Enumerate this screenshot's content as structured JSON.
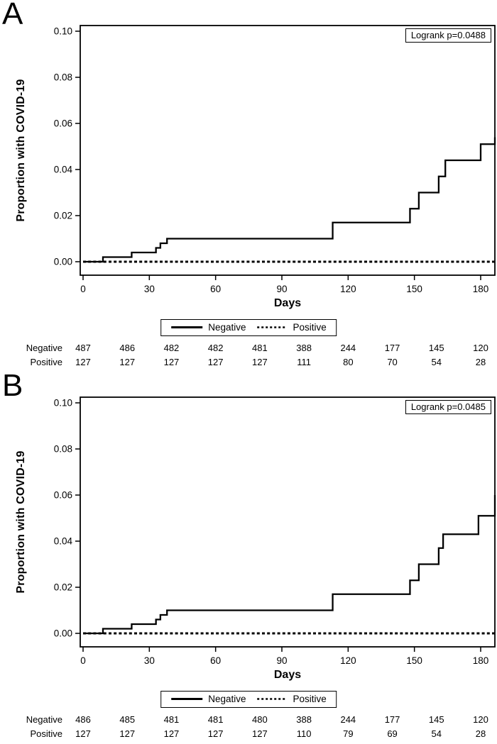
{
  "figure": {
    "background": "#ffffff",
    "ink": "#000000"
  },
  "chart_data": [
    {
      "type": "line",
      "subtype": "kaplan-meier-step",
      "panel_letter": "A",
      "xlabel": "Days",
      "ylabel": "Proportion with COVID-19",
      "xlim": [
        0,
        186.5
      ],
      "ylim": [
        0,
        0.1
      ],
      "x_ticks": [
        0,
        30,
        60,
        90,
        120,
        150,
        180
      ],
      "y_tick_labels": [
        "0.00",
        "0.02",
        "0.04",
        "0.06",
        "0.08",
        "0.10"
      ],
      "grid": false,
      "legend_position": "below-center",
      "annotation": "Logrank p=0.0488",
      "legend": [
        {
          "label": "Negative",
          "style": "solid"
        },
        {
          "label": "Positive",
          "style": "dotted"
        }
      ],
      "series": [
        {
          "name": "Negative",
          "style": "solid",
          "steps": [
            [
              0,
              0
            ],
            [
              9,
              0.002
            ],
            [
              22,
              0.004
            ],
            [
              33,
              0.006
            ],
            [
              35,
              0.008
            ],
            [
              38,
              0.01
            ],
            [
              113,
              0.017
            ],
            [
              148,
              0.023
            ],
            [
              152,
              0.03
            ],
            [
              161,
              0.037
            ],
            [
              164,
              0.044
            ],
            [
              180,
              0.051
            ],
            [
              186.5,
              0.054
            ]
          ]
        },
        {
          "name": "Positive",
          "style": "dotted",
          "steps": [
            [
              0,
              0
            ],
            [
              186.5,
              0
            ]
          ]
        }
      ],
      "risk_table": {
        "interval_days": 20,
        "rows": [
          {
            "label": "Negative",
            "values": [
              487,
              486,
              482,
              482,
              481,
              388,
              244,
              177,
              145,
              120
            ]
          },
          {
            "label": "Positive",
            "values": [
              127,
              127,
              127,
              127,
              127,
              111,
              80,
              70,
              54,
              28
            ]
          }
        ]
      }
    },
    {
      "type": "line",
      "subtype": "kaplan-meier-step",
      "panel_letter": "B",
      "xlabel": "Days",
      "ylabel": "Proportion with COVID-19",
      "xlim": [
        0,
        186.5
      ],
      "ylim": [
        0,
        0.1
      ],
      "x_ticks": [
        0,
        30,
        60,
        90,
        120,
        150,
        180
      ],
      "y_tick_labels": [
        "0.00",
        "0.02",
        "0.04",
        "0.06",
        "0.08",
        "0.10"
      ],
      "grid": false,
      "legend_position": "below-center",
      "annotation": "Logrank p=0.0485",
      "legend": [
        {
          "label": "Negative",
          "style": "solid"
        },
        {
          "label": "Positive",
          "style": "dotted"
        }
      ],
      "series": [
        {
          "name": "Negative",
          "style": "solid",
          "steps": [
            [
              0,
              0
            ],
            [
              9,
              0.002
            ],
            [
              22,
              0.004
            ],
            [
              33,
              0.006
            ],
            [
              35,
              0.008
            ],
            [
              38,
              0.01
            ],
            [
              113,
              0.017
            ],
            [
              148,
              0.023
            ],
            [
              152,
              0.03
            ],
            [
              161,
              0.037
            ],
            [
              163,
              0.043
            ],
            [
              179,
              0.051
            ],
            [
              186.5,
              0.06
            ]
          ]
        },
        {
          "name": "Positive",
          "style": "dotted",
          "steps": [
            [
              0,
              0
            ],
            [
              186.5,
              0
            ]
          ]
        }
      ],
      "risk_table": {
        "interval_days": 20,
        "rows": [
          {
            "label": "Negative",
            "values": [
              486,
              485,
              481,
              481,
              480,
              388,
              244,
              177,
              145,
              120
            ]
          },
          {
            "label": "Positive",
            "values": [
              127,
              127,
              127,
              127,
              127,
              110,
              79,
              69,
              54,
              28
            ]
          }
        ]
      }
    }
  ]
}
